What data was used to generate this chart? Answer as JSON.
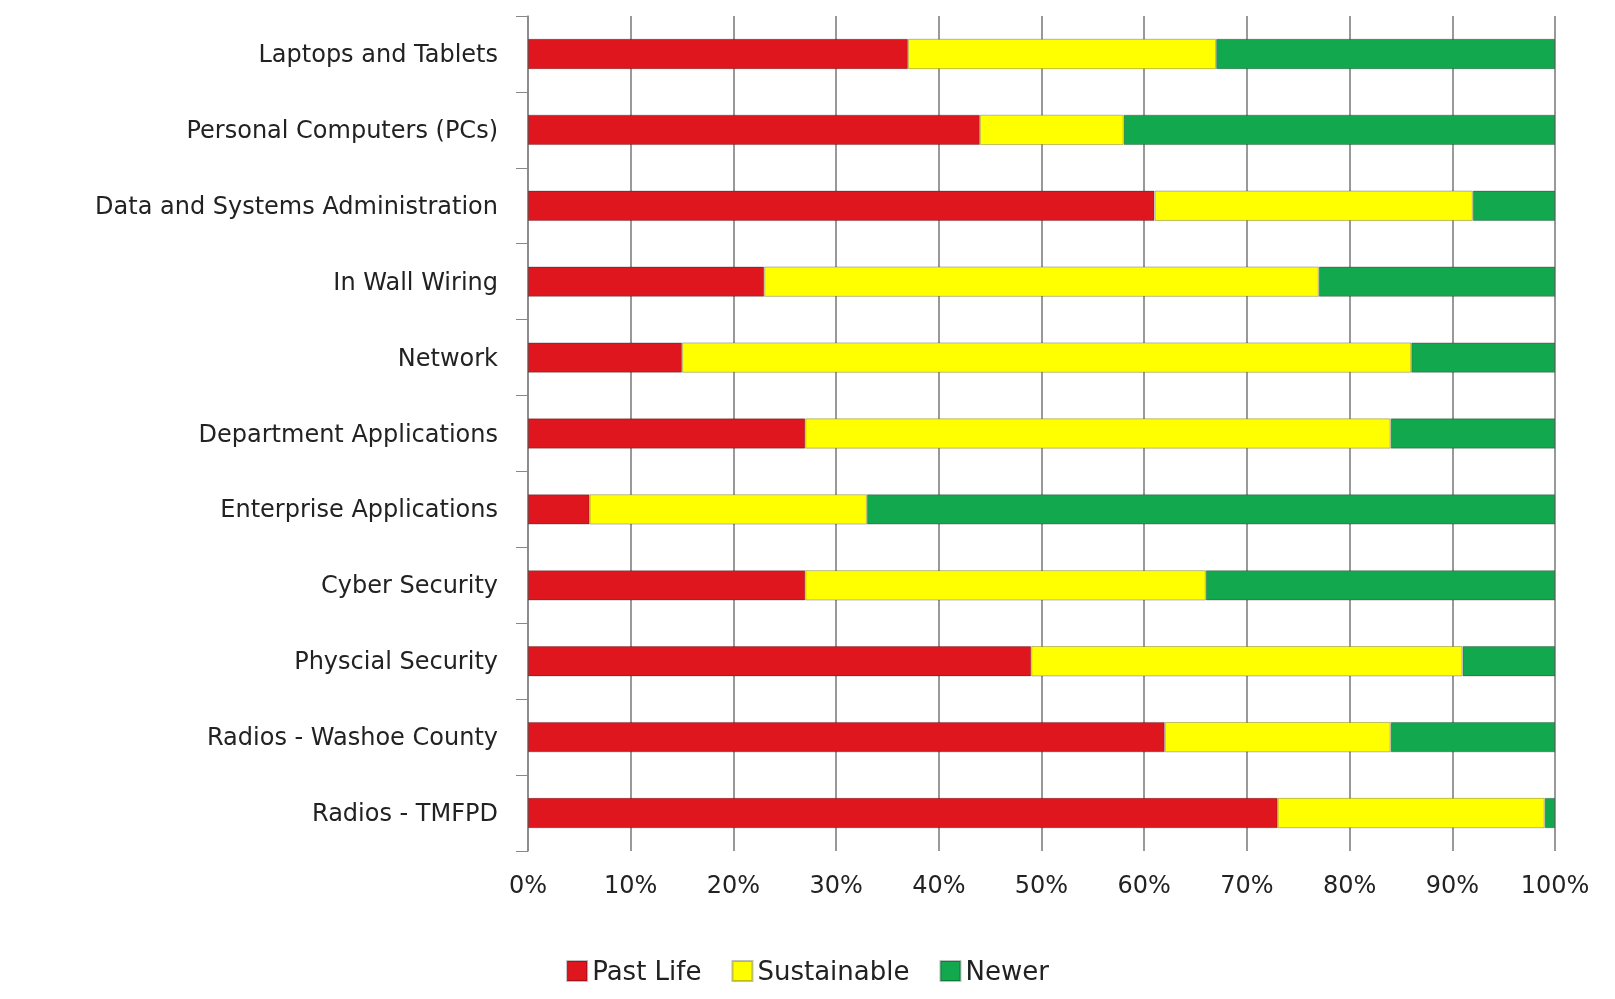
{
  "chart_data": {
    "type": "bar",
    "orientation": "horizontal",
    "stacked": true,
    "categories": [
      "Laptops and Tablets",
      "Personal Computers (PCs)",
      "Data and Systems Administration",
      "In Wall Wiring",
      "Network",
      "Department Applications",
      "Enterprise Applications",
      "Cyber Security",
      "Physcial Security",
      "Radios - Washoe County",
      "Radios - TMFPD"
    ],
    "series": [
      {
        "name": "Past Life",
        "color": "#e0161e",
        "values": [
          37,
          44,
          61,
          23,
          15,
          27,
          6,
          27,
          49,
          62,
          73
        ]
      },
      {
        "name": "Sustainable",
        "color": "#ffff00",
        "values": [
          30,
          14,
          31,
          54,
          71,
          57,
          27,
          39,
          42,
          22,
          26
        ]
      },
      {
        "name": "Newer",
        "color": "#12a84e",
        "values": [
          33,
          42,
          8,
          23,
          14,
          16,
          67,
          34,
          9,
          16,
          1
        ]
      }
    ],
    "xlim": [
      0,
      100
    ],
    "xticks": [
      {
        "value": 0,
        "label": "0%"
      },
      {
        "value": 10,
        "label": "10%"
      },
      {
        "value": 20,
        "label": "20%"
      },
      {
        "value": 30,
        "label": "30%"
      },
      {
        "value": 40,
        "label": "40%"
      },
      {
        "value": 50,
        "label": "50%"
      },
      {
        "value": 60,
        "label": "60%"
      },
      {
        "value": 70,
        "label": "70%"
      },
      {
        "value": 80,
        "label": "80%"
      },
      {
        "value": 90,
        "label": "90%"
      },
      {
        "value": 100,
        "label": "100%"
      }
    ],
    "grid": "x",
    "legend": "bottom"
  }
}
